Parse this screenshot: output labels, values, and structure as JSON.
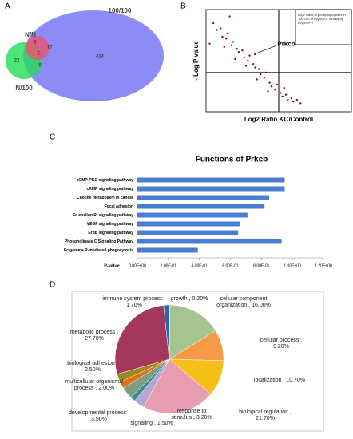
{
  "panels": [
    "A",
    "B",
    "C",
    "D"
  ],
  "chart_data": [
    {
      "type": "venn",
      "sets": [
        {
          "name": "N/N",
          "color": "#f0506e"
        },
        {
          "name": "N/100",
          "color": "#22dd55"
        },
        {
          "name": "100/100",
          "color": "#6f6ff5"
        }
      ],
      "values": [
        22,
        5,
        17,
        2,
        6,
        424
      ]
    },
    {
      "type": "scatter",
      "xlabel": "Log2 Ratio KO/Control",
      "ylabel": "- Log P value",
      "legend_text": "Log2 Ratio of phosphopeptides in 100/100 of FcγRIIb-/- divided by FcγRIIb+/+",
      "color": "#7a1020",
      "x": [
        -3.6,
        -3.4,
        -3.2,
        -3.1,
        -2.9,
        -2.8,
        -2.6,
        -2.5,
        -2.3,
        -2.2,
        -2.0,
        -1.9,
        -1.7,
        -1.6,
        -1.4,
        -1.3,
        -1.1,
        -1.0,
        -0.8,
        -0.7,
        -0.5,
        -0.4,
        -0.2,
        -0.1,
        0.1,
        0.2,
        0.4,
        0.5,
        0.7,
        0.8,
        1.0,
        1.2,
        -3.0,
        -2.4,
        -1.8,
        -1.2,
        -0.6,
        0.3,
        -2.7,
        -3.8
      ],
      "y": [
        5.2,
        4.8,
        4.9,
        4.4,
        4.3,
        4.6,
        3.9,
        4.1,
        3.7,
        3.5,
        3.6,
        3.2,
        3.0,
        3.3,
        2.8,
        2.6,
        2.5,
        2.2,
        2.0,
        2.3,
        1.7,
        1.5,
        1.3,
        1.6,
        1.1,
        0.9,
        1.0,
        0.7,
        0.8,
        0.6,
        0.7,
        0.5,
        3.8,
        3.1,
        2.7,
        1.9,
        1.2,
        1.4,
        5.6,
        4.0
      ],
      "xlim": [
        -4,
        4
      ],
      "ylim": [
        0,
        6
      ],
      "reference_lines": {
        "x": 0,
        "y": 2.3
      },
      "annotation": {
        "text": "Prkcb",
        "x": -1.3,
        "y": 3.4
      }
    },
    {
      "type": "bar",
      "orientation": "horizontal",
      "title": "Functions of Prkcb",
      "xlabel": "P-value",
      "color": "#4a7fd0",
      "categories": [
        "cGMP-PKG signaling pathway",
        "cAMP signaling pathway",
        "Choline metabolism in cancer",
        "Focal adhesion",
        "Fc epsilon RI signaling pathway",
        "VEGF signaling pathway",
        "ErbB signaling pathway",
        "Phospholipase C Signaling Pathway",
        "Fc gamma R-mediated phagocytosis"
      ],
      "values": [
        0.95,
        0.95,
        0.85,
        0.82,
        0.71,
        0.66,
        0.65,
        0.93,
        0.39
      ],
      "xlim": [
        0,
        1.2
      ],
      "xticks": [
        {
          "value": 0,
          "label": "0.00E+00"
        },
        {
          "value": 0.2,
          "label": "2.00E-01"
        },
        {
          "value": 0.4,
          "label": "4.00E-01"
        },
        {
          "value": 0.6,
          "label": "6.00E-01"
        },
        {
          "value": 0.8,
          "label": "8.00E-01"
        },
        {
          "value": 1.0,
          "label": "1.00E+00"
        },
        {
          "value": 1.2,
          "label": "1.20E+00"
        }
      ]
    },
    {
      "type": "pie",
      "values": [
        0.2,
        16.0,
        9.2,
        10.7,
        21.7,
        3.2,
        1.5,
        3.5,
        2.0,
        2.5,
        27.7,
        1.7
      ],
      "value_labels": [
        "growth , 0.20%",
        "cellular component organization , 16.00%",
        "cellular process , 9.20%",
        "localization , 10.70%",
        "biological regulation , 21.70%",
        "response to stimulus , 3.20%",
        "signaling , 1.50%",
        "developmental process , 3.50%",
        "multicellular organismal process , 2.00%",
        "biological adhesion , 2.50%",
        "metabolic process , 27.70%",
        "immune system process , 1.70%"
      ],
      "colors": [
        "#1f3f80",
        "#a6c48e",
        "#f79a46",
        "#f6bf18",
        "#e79cb2",
        "#b4a5d4",
        "#3c8c8c",
        "#7f9c84",
        "#e06e14",
        "#9a8a1c",
        "#a3385c",
        "#2a66b0"
      ]
    }
  ]
}
